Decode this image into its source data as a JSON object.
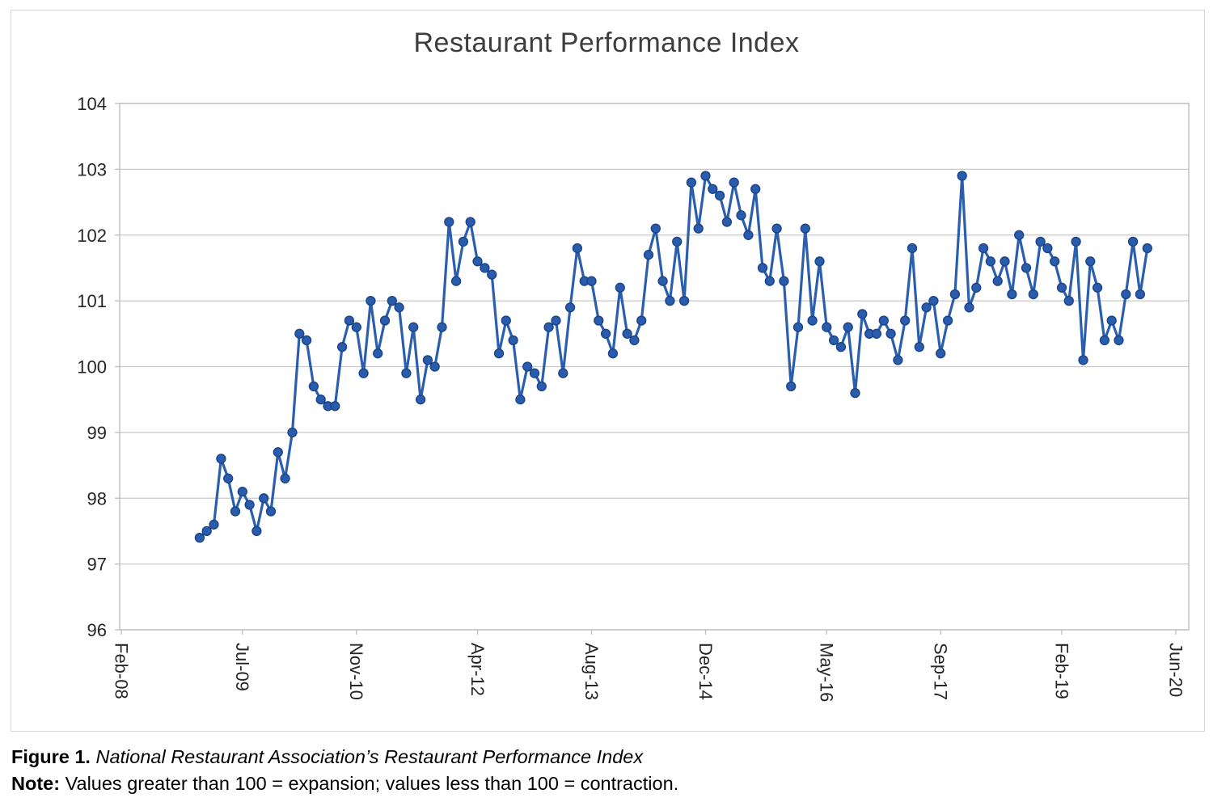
{
  "figure": {
    "title": "Restaurant Performance Index",
    "caption_label": "Figure 1.",
    "caption_text": " National Restaurant Association’s Restaurant Performance Index",
    "note_label": "Note:",
    "note_text": " Values greater than 100 = expansion; values less than 100 = contraction."
  },
  "chart_data": {
    "type": "line",
    "title": "Restaurant Performance Index",
    "xlabel": "",
    "ylabel": "",
    "ylim": [
      96,
      104
    ],
    "y_ticks": [
      96,
      97,
      98,
      99,
      100,
      101,
      102,
      103,
      104
    ],
    "x_tick_labels": [
      "Feb-08",
      "Jul-09",
      "Nov-10",
      "Apr-12",
      "Aug-13",
      "Dec-14",
      "May-16",
      "Sep-17",
      "Feb-19",
      "Jun-20"
    ],
    "x_tick_months": [
      0,
      17,
      33,
      50,
      66,
      82,
      99,
      115,
      132,
      148
    ],
    "x_axis_total_months": 148,
    "grid": true,
    "legend_position": "none",
    "series": [
      {
        "name": "Restaurant Performance Index",
        "start_month_index": 11,
        "values": [
          97.4,
          97.5,
          97.6,
          98.6,
          98.3,
          97.8,
          98.1,
          97.9,
          97.5,
          98.0,
          97.8,
          98.7,
          98.3,
          99.0,
          100.5,
          100.4,
          99.7,
          99.5,
          99.4,
          99.4,
          100.3,
          100.7,
          100.6,
          99.9,
          101.0,
          100.2,
          100.7,
          101.0,
          100.9,
          99.9,
          100.6,
          99.5,
          100.1,
          100.0,
          100.6,
          102.2,
          101.3,
          101.9,
          102.2,
          101.6,
          101.5,
          101.4,
          100.2,
          100.7,
          100.4,
          99.5,
          100.0,
          99.9,
          99.7,
          100.6,
          100.7,
          99.9,
          100.9,
          101.8,
          101.3,
          101.3,
          100.7,
          100.5,
          100.2,
          101.2,
          100.5,
          100.4,
          100.7,
          101.7,
          102.1,
          101.3,
          101.0,
          101.9,
          101.0,
          102.8,
          102.1,
          102.9,
          102.7,
          102.6,
          102.2,
          102.8,
          102.3,
          102.0,
          102.7,
          101.5,
          101.3,
          102.1,
          101.3,
          99.7,
          100.6,
          102.1,
          100.7,
          101.6,
          100.6,
          100.4,
          100.3,
          100.6,
          99.6,
          100.8,
          100.5,
          100.5,
          100.7,
          100.5,
          100.1,
          100.7,
          101.8,
          100.3,
          100.9,
          101.0,
          100.2,
          100.7,
          101.1,
          102.9,
          100.9,
          101.2,
          101.8,
          101.6,
          101.3,
          101.6,
          101.1,
          102.0,
          101.5,
          101.1,
          101.9,
          101.8,
          101.6,
          101.2,
          101.0,
          101.9,
          100.1,
          101.6,
          101.2,
          100.4,
          100.7,
          100.4,
          101.1,
          101.9,
          101.1,
          101.8
        ]
      }
    ],
    "colors": {
      "line": "#2b5fae",
      "marker_fill": "#2a5cad",
      "marker_edge": "#1c4689",
      "grid": "#c9c9c9",
      "plot_border": "#bdbdc6",
      "tick_text": "#262626",
      "title_text": "#3d3d3d",
      "frame": "#d6d6d6"
    }
  }
}
